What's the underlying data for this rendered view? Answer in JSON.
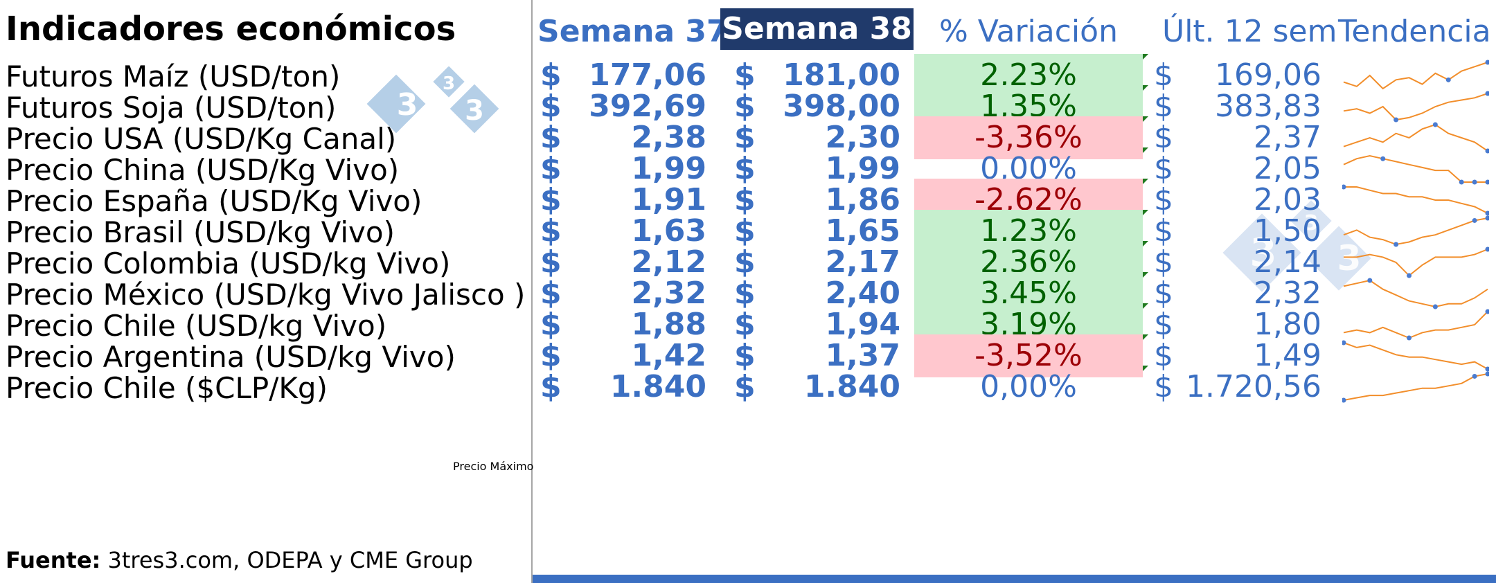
{
  "title": "Indicadores económicos",
  "headers": {
    "semana37": "Semana 37",
    "semana38": "Semana 38",
    "variacion": "% Variación",
    "ultimas": "Últ. 12 sem",
    "tendencia": "Tendencia"
  },
  "currency_symbol": "$",
  "rows": [
    {
      "label": "Futuros Maíz (USD/ton)",
      "s37": "177,06",
      "s38": "181,00",
      "var": "2,23%",
      "status": "pos",
      "ult": "169,06",
      "trend": [
        5,
        3,
        8,
        2,
        6,
        7,
        4,
        9,
        6,
        10,
        12,
        14
      ],
      "markers": [
        8,
        11
      ]
    },
    {
      "label": "Futuros Soja (USD/ton)",
      "s37": "392,69",
      "s38": "398,00",
      "var": "1,35%",
      "status": "pos",
      "ult": "383,83",
      "trend": [
        6,
        7,
        5,
        8,
        2,
        3,
        5,
        8,
        10,
        11,
        12,
        14
      ],
      "markers": [
        4,
        11
      ]
    },
    {
      "label": "Precio USA (USD/Kg Canal)",
      "s37": "2,38",
      "s38": "2,30",
      "var": "-3,36%",
      "status": "neg",
      "ult": "2,37",
      "trend": [
        8,
        9,
        10,
        9,
        11,
        10,
        12,
        13,
        11,
        10,
        9,
        7
      ],
      "markers": [
        7,
        11
      ]
    },
    {
      "label": "Precio China (USD/Kg Vivo)",
      "s37": "1,99",
      "s38": "1,99",
      "var": "0,00%",
      "status": "neu",
      "ult": "2,05",
      "trend": [
        10,
        12,
        13,
        12,
        11,
        10,
        9,
        8,
        8,
        4,
        4,
        4
      ],
      "markers": [
        3,
        9,
        10,
        11
      ]
    },
    {
      "label": "Precio España (USD/Kg Vivo)",
      "s37": "1,91",
      "s38": "1,86",
      "var": "-2,62%",
      "status": "neg",
      "ult": "2,03",
      "trend": [
        14,
        14,
        13,
        12,
        12,
        11,
        11,
        10,
        10,
        9,
        8,
        6
      ],
      "markers": [
        0,
        11
      ]
    },
    {
      "label": "Precio  Brasil (USD/kg Vivo)",
      "s37": "1,63",
      "s38": "1,65",
      "var": "1,23%",
      "status": "pos",
      "ult": "1,50",
      "trend": [
        7,
        9,
        6,
        5,
        3,
        4,
        6,
        7,
        9,
        11,
        13,
        14
      ],
      "markers": [
        4,
        10,
        11
      ]
    },
    {
      "label": "Precio Colombia (USD/kg Vivo)",
      "s37": "2,12",
      "s38": "2,17",
      "var": "2,36%",
      "status": "pos",
      "ult": "2,14",
      "trend": [
        10,
        10,
        11,
        10,
        8,
        3,
        7,
        10,
        10,
        10,
        11,
        13
      ],
      "markers": [
        5,
        11
      ]
    },
    {
      "label": "Precio México (USD/kg Vivo Jalisco )",
      "s37": "2,32",
      "s38": "2,40",
      "var": "3,45%",
      "status": "pos",
      "ult": "2,32",
      "trend": [
        11,
        12,
        13,
        10,
        8,
        6,
        5,
        4,
        5,
        5,
        7,
        10
      ],
      "markers": [
        2,
        7
      ]
    },
    {
      "label": "Precio Chile (USD/kg Vivo)",
      "s37": "1,88",
      "s38": "1,94",
      "var": "3,19%",
      "status": "pos",
      "ult": "1,80",
      "trend": [
        6,
        7,
        6,
        8,
        6,
        4,
        6,
        7,
        7,
        8,
        9,
        14
      ],
      "markers": [
        5,
        11
      ]
    },
    {
      "label": "Precio Argentina (USD/kg Vivo)",
      "s37": "1,42",
      "s38": "1,37",
      "var": "-3,52%",
      "status": "neg",
      "ult": "1,49",
      "trend": [
        14,
        12,
        13,
        11,
        9,
        8,
        8,
        7,
        6,
        5,
        6,
        3
      ],
      "markers": [
        0,
        11
      ]
    },
    {
      "label": "Precio Chile ($CLP/Kg)",
      "s37": "1.840",
      "s38": "1.840",
      "var": "0,00%",
      "status": "neu",
      "ult": "1.720,56",
      "trend": [
        3,
        4,
        5,
        5,
        6,
        7,
        8,
        8,
        9,
        10,
        13,
        14
      ],
      "markers": [
        0,
        10,
        11
      ]
    }
  ],
  "note": "Precio Máximo",
  "footer": {
    "label": "Fuente:",
    "text": " 3tres3.com, ODEPA y CME Group"
  },
  "watermark": {
    "text": "3"
  },
  "colors": {
    "accent": "#3b6fc2",
    "header_dark": "#203a6b",
    "positive_bg": "#c6efce",
    "negative_bg": "#ffc7ce",
    "spark": "#f28e2b"
  }
}
